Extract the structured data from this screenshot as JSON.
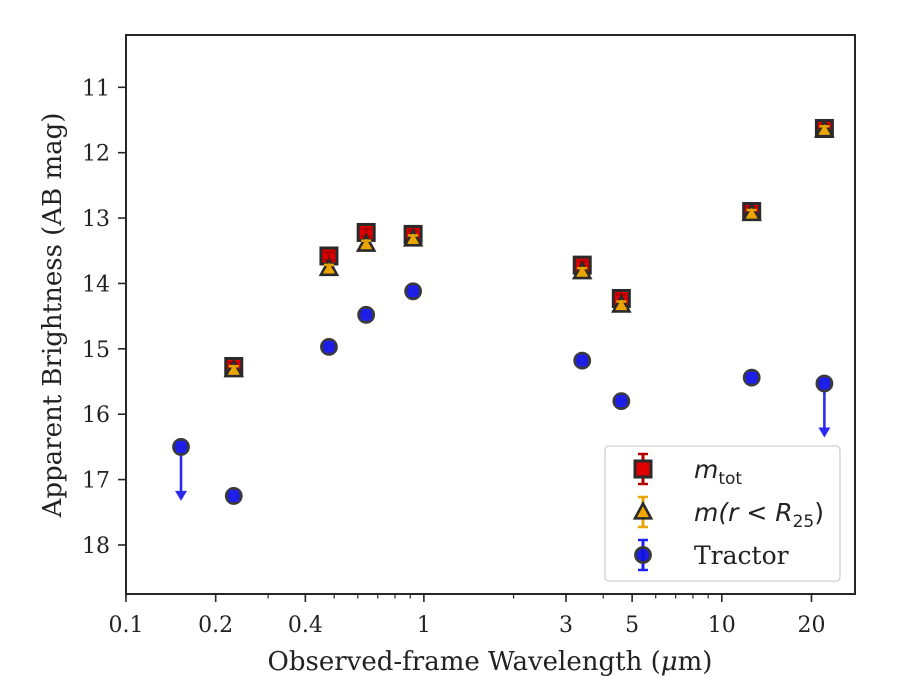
{
  "chart_data": {
    "type": "scatter",
    "xlabel_prefix": "Observed-frame Wavelength (",
    "xlabel_mu": "μ",
    "xlabel_suffix": "m)",
    "ylabel": "Apparent Brightness (AB mag)",
    "xscale": "log",
    "xlim": [
      0.1,
      28
    ],
    "ylim": [
      18.75,
      10.2
    ],
    "y_inverted": true,
    "x_ticks": [
      0.1,
      0.2,
      0.4,
      1,
      3,
      5,
      10,
      20
    ],
    "x_tick_labels": [
      "0.1",
      "0.2",
      "0.4",
      "1",
      "3",
      "5",
      "10",
      "20"
    ],
    "y_ticks": [
      11,
      12,
      13,
      14,
      15,
      16,
      17,
      18
    ],
    "y_tick_labels": [
      "11",
      "12",
      "13",
      "14",
      "15",
      "16",
      "17",
      "18"
    ],
    "legend_position": "lower right",
    "series": [
      {
        "name": "m_tot",
        "legend_label": {
          "main": "m",
          "sub": "tot"
        },
        "marker": "square",
        "color": "#e00000",
        "errcolor": "#b00000",
        "points": [
          {
            "x": 0.23,
            "y": 15.27
          },
          {
            "x": 0.48,
            "y": 13.58
          },
          {
            "x": 0.64,
            "y": 13.22
          },
          {
            "x": 0.92,
            "y": 13.25
          },
          {
            "x": 3.4,
            "y": 13.72
          },
          {
            "x": 4.6,
            "y": 14.23
          },
          {
            "x": 12.6,
            "y": 12.9
          },
          {
            "x": 22.1,
            "y": 11.63
          }
        ]
      },
      {
        "name": "m(r<R25)",
        "legend_label": {
          "prefix": "m(r < R",
          "sub": "25",
          "suffix": ")"
        },
        "marker": "triangle",
        "color": "#f5a500",
        "errcolor": "#e8a400",
        "points": [
          {
            "x": 0.23,
            "y": 15.32
          },
          {
            "x": 0.48,
            "y": 13.77
          },
          {
            "x": 0.64,
            "y": 13.4
          },
          {
            "x": 0.92,
            "y": 13.32
          },
          {
            "x": 3.4,
            "y": 13.82
          },
          {
            "x": 4.6,
            "y": 14.33
          },
          {
            "x": 12.6,
            "y": 12.93
          },
          {
            "x": 22.1,
            "y": 11.65
          }
        ]
      },
      {
        "name": "Tractor",
        "legend_label": {
          "main": "Tractor"
        },
        "marker": "circle",
        "color": "#1010e0",
        "errcolor": "#2020ee",
        "points": [
          {
            "x": 0.153,
            "y": 16.5,
            "upper_limit": true
          },
          {
            "x": 0.23,
            "y": 17.25
          },
          {
            "x": 0.48,
            "y": 14.97
          },
          {
            "x": 0.64,
            "y": 14.48
          },
          {
            "x": 0.92,
            "y": 14.12
          },
          {
            "x": 3.4,
            "y": 15.18
          },
          {
            "x": 4.6,
            "y": 15.8
          },
          {
            "x": 12.6,
            "y": 15.44
          },
          {
            "x": 22.1,
            "y": 15.53,
            "upper_limit": true
          }
        ]
      }
    ]
  }
}
